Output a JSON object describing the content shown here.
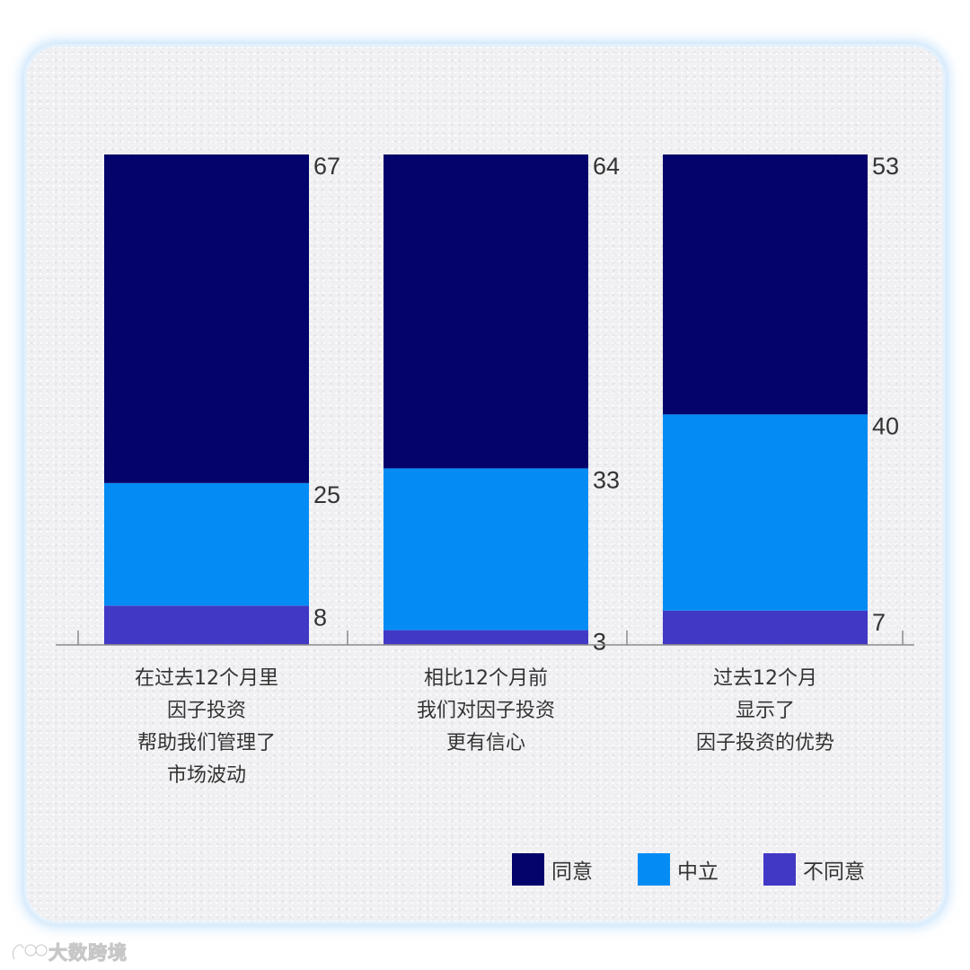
{
  "chart_data": {
    "type": "bar",
    "stacked": true,
    "categories": [
      [
        "在过去12个月里",
        "因子投资",
        "帮助我们管理了",
        "市场波动"
      ],
      [
        "相比12个月前",
        "我们对因子投资",
        "更有信心"
      ],
      [
        "过去12个月",
        "显示了",
        "因子投资的优势"
      ]
    ],
    "series": [
      {
        "name": "不同意",
        "color": "#4138c6",
        "values": [
          8,
          3,
          7
        ]
      },
      {
        "name": "中立",
        "color": "#058cf4",
        "values": [
          25,
          33,
          40
        ]
      },
      {
        "name": "同意",
        "color": "#03036b",
        "values": [
          67,
          64,
          53
        ]
      }
    ],
    "data_labels": [
      [
        "8",
        "25",
        "67"
      ],
      [
        "3",
        "33",
        "64"
      ],
      [
        "7",
        "40",
        "53"
      ]
    ],
    "ylim": [
      0,
      100
    ],
    "legend": {
      "position": "bottom-right",
      "order": [
        "同意",
        "中立",
        "不同意"
      ]
    },
    "grid": false
  },
  "watermark": {
    "text": "大数跨境"
  }
}
